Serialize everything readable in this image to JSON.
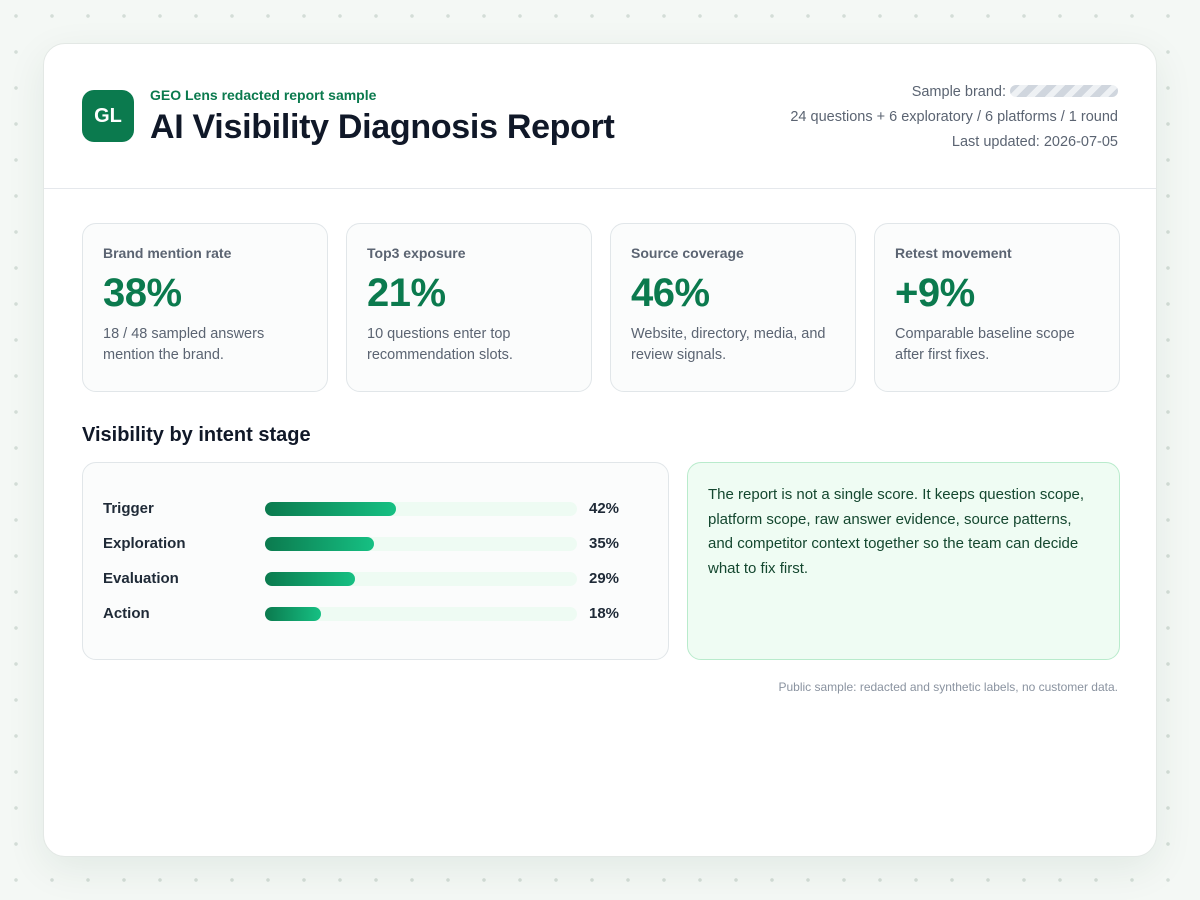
{
  "header": {
    "logo_text": "GL",
    "kicker": "GEO Lens redacted report sample",
    "title": "AI Visibility Diagnosis Report",
    "brand_label": "Sample brand:",
    "scope": "24 questions + 6 exploratory / 6 platforms / 1 round",
    "last_updated": "Last updated: 2026-07-05"
  },
  "metrics": [
    {
      "label": "Brand mention rate",
      "value": "38%",
      "description": "18 / 48 sampled answers mention the brand."
    },
    {
      "label": "Top3 exposure",
      "value": "21%",
      "description": "10 questions enter top recommendation slots."
    },
    {
      "label": "Source coverage",
      "value": "46%",
      "description": "Website, directory, media, and review signals."
    },
    {
      "label": "Retest movement",
      "value": "+9%",
      "description": "Comparable baseline scope after first fixes."
    }
  ],
  "section_title": "Visibility by intent stage",
  "stages": [
    {
      "label": "Trigger",
      "percent": 42,
      "percent_label": "42%"
    },
    {
      "label": "Exploration",
      "percent": 35,
      "percent_label": "35%"
    },
    {
      "label": "Evaluation",
      "percent": 29,
      "percent_label": "29%"
    },
    {
      "label": "Action",
      "percent": 18,
      "percent_label": "18%"
    }
  ],
  "note": "The report is not a single score. It keeps question scope, platform scope, raw answer evidence, source patterns, and competitor context together so the team can decide what to fix first.",
  "footer": "Public sample: redacted and synthetic labels, no customer data.",
  "colors": {
    "accent": "#0b7a4e",
    "bar_start": "#0b7a4e",
    "bar_end": "#16c083",
    "note_bg": "#effcf3"
  }
}
